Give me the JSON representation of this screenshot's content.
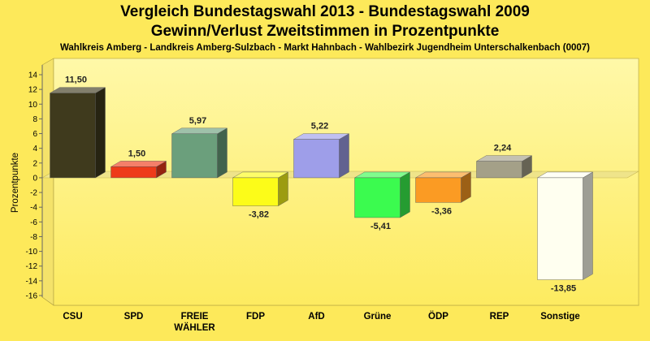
{
  "chart_data": {
    "type": "bar",
    "title": "Vergleich Bundestagswahl 2013 - Bundestagswahl 2009",
    "subtitle": "Gewinn/Verlust Zweitstimmen in Prozentpunkte",
    "caption": "Wahlkreis Amberg - Landkreis Amberg-Sulzbach - Markt Hahnbach - Wahlbezirk Jugendheim Unterschalkenbach (0007)",
    "xlabel": "",
    "ylabel": "Prozentpunkte",
    "ylim": [
      -16,
      14
    ],
    "yticks": [
      14,
      12,
      10,
      8,
      6,
      4,
      2,
      0,
      -2,
      -4,
      -6,
      -8,
      -10,
      -12,
      -14,
      -16
    ],
    "grid": false,
    "categories": [
      [
        "CSU"
      ],
      [
        "SPD"
      ],
      [
        "FREIE",
        "WÄHLER"
      ],
      [
        "FDP"
      ],
      [
        "AfD"
      ],
      [
        "Grüne"
      ],
      [
        "ÖDP"
      ],
      [
        "REP"
      ],
      [
        "Sonstige"
      ]
    ],
    "values": [
      11.5,
      1.5,
      5.97,
      -3.82,
      5.22,
      -5.41,
      -3.36,
      2.24,
      -13.85
    ],
    "value_labels": [
      "11,50",
      "1,50",
      "5,97",
      "-3,82",
      "5,22",
      "-5,41",
      "-3,36",
      "2,24",
      "-13,85"
    ],
    "colors": [
      "#3f3a1d",
      "#ee3a1a",
      "#6b9f7c",
      "#fcfc19",
      "#9e9ee9",
      "#3bfb4f",
      "#fb9b23",
      "#a4a088",
      "#fffff0"
    ]
  }
}
